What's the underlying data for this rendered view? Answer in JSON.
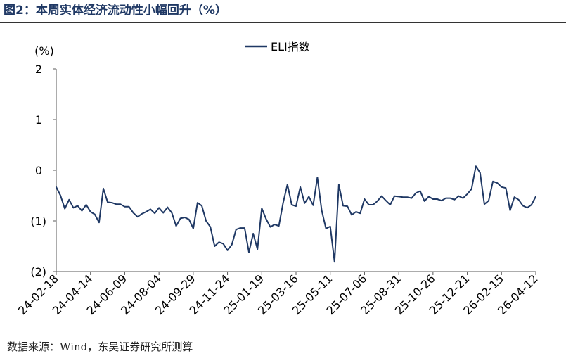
{
  "chart_data": {
    "type": "line",
    "title": "图2：本周实体经济流动性小幅回升（%）",
    "ylabel": "(%)",
    "legend": "top-center",
    "grid": false,
    "xlim": [
      "24-02-18",
      "26-04-12"
    ],
    "ylim": [
      -2,
      2
    ],
    "x_ticks": [
      "24-02-18",
      "24-04-14",
      "24-06-09",
      "24-08-04",
      "24-09-29",
      "24-11-24",
      "25-01-19",
      "25-03-16",
      "25-05-11",
      "25-07-06",
      "25-08-31",
      "25-10-26",
      "25-12-21",
      "26-02-15",
      "26-04-12"
    ],
    "y_ticks": [
      2,
      1,
      0,
      -1,
      -2
    ],
    "y_tick_labels": [
      "2",
      "1",
      "0",
      "(1)",
      "(2)"
    ],
    "negative_label_color": "#c00000",
    "x": [
      "24-02-18",
      "24-02-25",
      "24-03-03",
      "24-03-10",
      "24-03-17",
      "24-03-24",
      "24-03-31",
      "24-04-07",
      "24-04-14",
      "24-04-21",
      "24-04-28",
      "24-05-05",
      "24-05-12",
      "24-05-19",
      "24-05-26",
      "24-06-02",
      "24-06-09",
      "24-06-16",
      "24-06-23",
      "24-06-30",
      "24-07-07",
      "24-07-14",
      "24-07-21",
      "24-07-28",
      "24-08-04",
      "24-08-11",
      "24-08-18",
      "24-08-25",
      "24-09-01",
      "24-09-08",
      "24-09-15",
      "24-09-22",
      "24-09-29",
      "24-10-06",
      "24-10-13",
      "24-10-20",
      "24-10-27",
      "24-11-03",
      "24-11-10",
      "24-11-17",
      "24-11-24",
      "24-12-01",
      "24-12-08",
      "24-12-15",
      "24-12-22",
      "24-12-29",
      "25-01-05",
      "25-01-12",
      "25-01-19",
      "25-01-26",
      "25-02-02",
      "25-02-09",
      "25-02-16",
      "25-02-23",
      "25-03-02",
      "25-03-09",
      "25-03-16",
      "25-03-23",
      "25-03-30",
      "25-04-06",
      "25-04-13",
      "25-04-20",
      "25-04-27",
      "25-05-04",
      "25-05-11",
      "25-05-18",
      "25-05-25",
      "25-06-01",
      "25-06-08",
      "25-06-15",
      "25-06-22",
      "25-06-29",
      "25-07-06",
      "25-07-13",
      "25-07-20",
      "25-07-27",
      "25-08-03",
      "25-08-10",
      "25-08-17",
      "25-08-24",
      "25-08-31",
      "25-09-07",
      "25-09-14",
      "25-09-21",
      "25-09-28",
      "25-10-05",
      "25-10-12",
      "25-10-19",
      "25-10-26",
      "25-11-02",
      "25-11-09",
      "25-11-16",
      "25-11-23",
      "25-11-30",
      "25-12-07",
      "25-12-14",
      "25-12-21",
      "25-12-28",
      "26-01-04",
      "26-01-11",
      "26-01-18",
      "26-01-25",
      "26-02-01",
      "26-02-08",
      "26-02-15",
      "26-02-22",
      "26-03-01",
      "26-03-08",
      "26-03-15",
      "26-03-22",
      "26-03-29",
      "26-04-05",
      "26-04-12"
    ],
    "series": [
      {
        "name": "ELI指数",
        "color": "#1f3864",
        "values": [
          -0.33,
          -0.5,
          -0.76,
          -0.58,
          -0.74,
          -0.7,
          -0.8,
          -0.68,
          -0.82,
          -0.87,
          -1.03,
          -0.36,
          -0.63,
          -0.64,
          -0.67,
          -0.67,
          -0.72,
          -0.72,
          -0.84,
          -0.92,
          -0.86,
          -0.82,
          -0.77,
          -0.85,
          -0.74,
          -0.84,
          -0.73,
          -0.84,
          -1.1,
          -0.95,
          -0.93,
          -0.97,
          -1.15,
          -0.64,
          -0.7,
          -1.0,
          -1.12,
          -1.5,
          -1.42,
          -1.45,
          -1.58,
          -1.47,
          -1.17,
          -1.14,
          -1.14,
          -1.62,
          -1.25,
          -1.56,
          -0.75,
          -0.96,
          -1.12,
          -1.07,
          -1.1,
          -0.64,
          -0.28,
          -0.68,
          -0.71,
          -0.33,
          -0.65,
          -0.52,
          -0.69,
          -0.14,
          -0.79,
          -1.15,
          -1.11,
          -1.81,
          -0.28,
          -0.7,
          -0.71,
          -0.88,
          -0.82,
          -0.85,
          -0.57,
          -0.68,
          -0.68,
          -0.61,
          -0.51,
          -0.6,
          -0.68,
          -0.51,
          -0.52,
          -0.53,
          -0.53,
          -0.55,
          -0.45,
          -0.41,
          -0.61,
          -0.52,
          -0.57,
          -0.57,
          -0.6,
          -0.55,
          -0.55,
          -0.58,
          -0.51,
          -0.55,
          -0.47,
          -0.37,
          0.08,
          -0.05,
          -0.67,
          -0.6,
          -0.22,
          -0.25,
          -0.33,
          -0.35,
          -0.79,
          -0.53,
          -0.58,
          -0.7,
          -0.74,
          -0.68,
          -0.52
        ]
      }
    ]
  },
  "source": "数据来源：Wind，东吴证券研究所测算"
}
